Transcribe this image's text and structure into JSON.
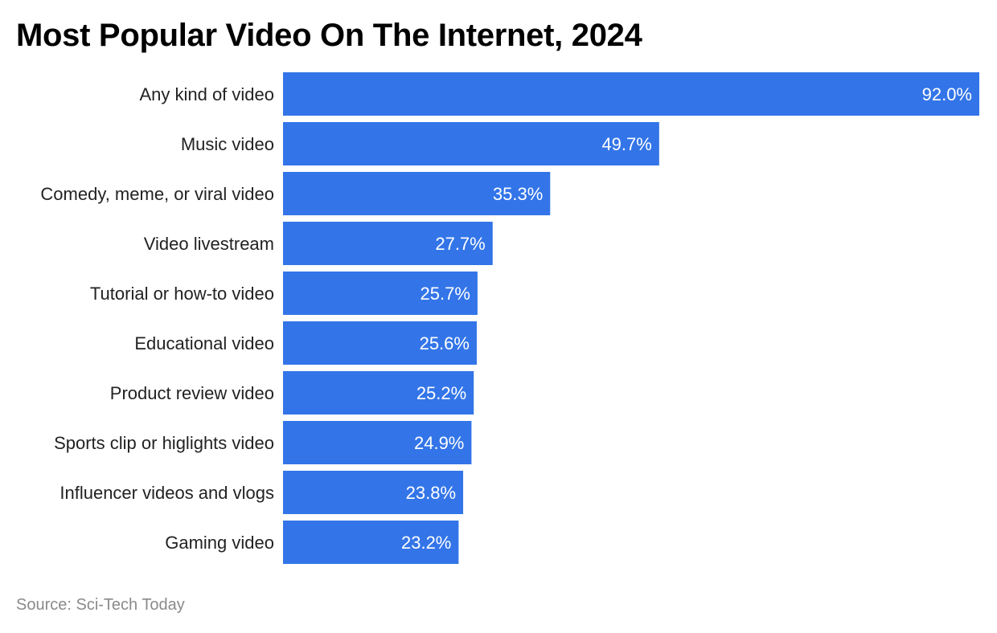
{
  "chart_data": {
    "type": "bar",
    "orientation": "horizontal",
    "title": "Most Popular Video On The Internet, 2024",
    "categories": [
      "Any kind of video",
      "Music video",
      "Comedy, meme, or viral video",
      "Video livestream",
      "Tutorial or how-to video",
      "Educational video",
      "Product review video",
      "Sports clip or higlights video",
      "Influencer videos and vlogs",
      "Gaming video"
    ],
    "values": [
      92.0,
      49.7,
      35.3,
      27.7,
      25.7,
      25.6,
      25.2,
      24.9,
      23.8,
      23.2
    ],
    "value_labels": [
      "92.0%",
      "49.7%",
      "35.3%",
      "27.7%",
      "25.7%",
      "25.6%",
      "25.2%",
      "24.9%",
      "23.8%",
      "23.2%"
    ],
    "xlim": [
      0,
      92
    ],
    "grid": false,
    "bar_color": "#3375E8",
    "source": "Source: Sci-Tech Today"
  }
}
